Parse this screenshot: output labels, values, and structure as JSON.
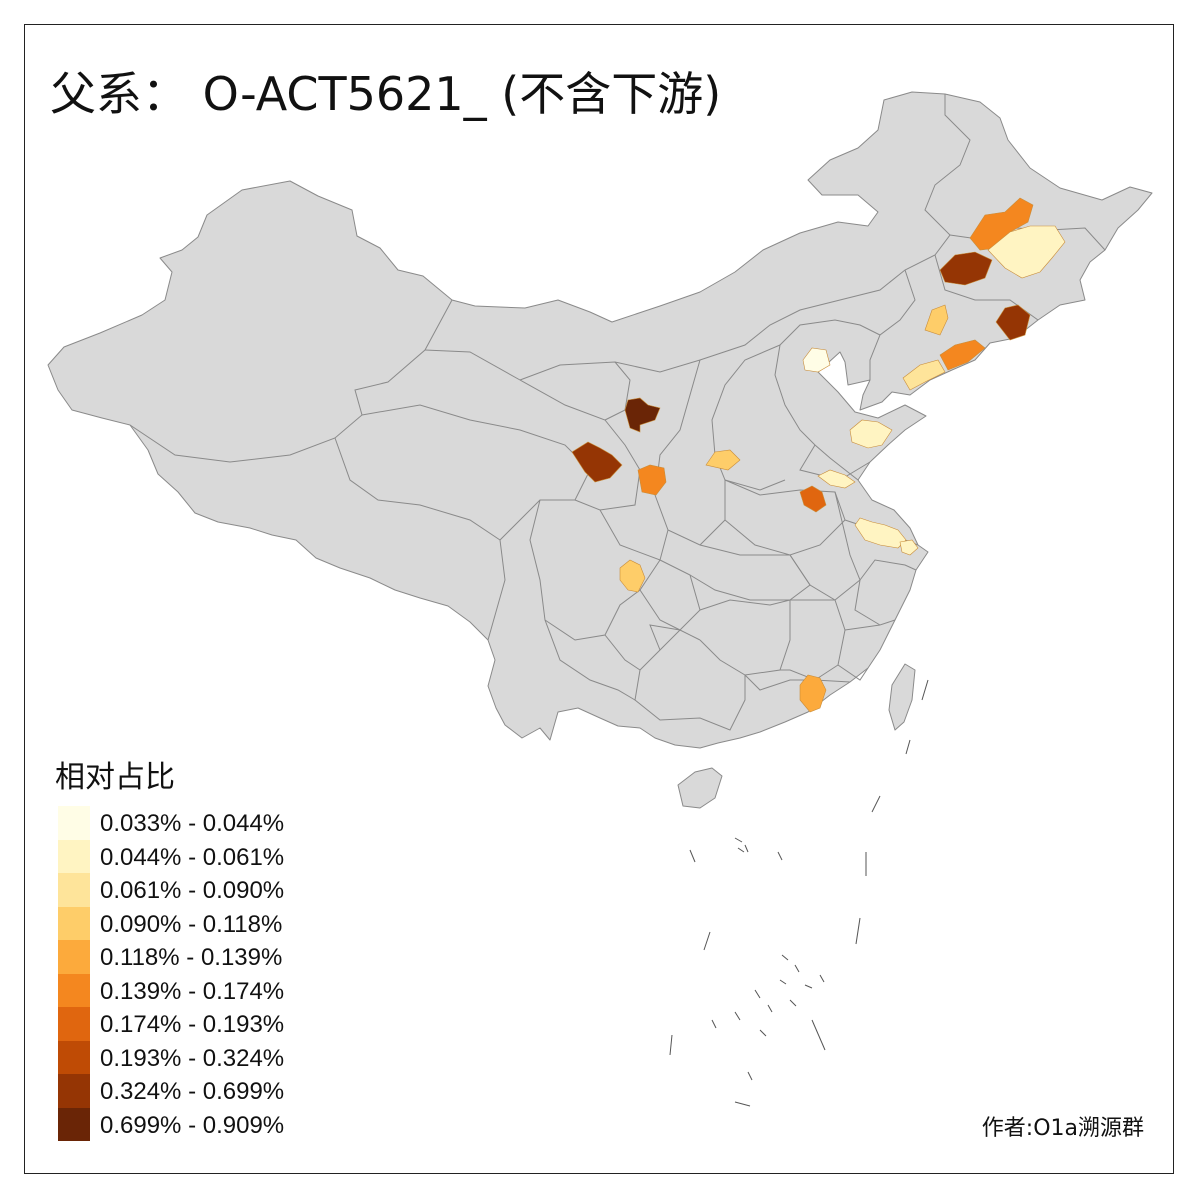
{
  "title": "父系： O-ACT5621_ (不含下游)",
  "legend": {
    "title": "相对占比",
    "items": [
      {
        "label": "0.033% - 0.044%",
        "color": "#fffde6"
      },
      {
        "label": "0.044% - 0.061%",
        "color": "#fff4c2"
      },
      {
        "label": "0.061% - 0.090%",
        "color": "#fee49a"
      },
      {
        "label": "0.090% - 0.118%",
        "color": "#fecd69"
      },
      {
        "label": "0.118% - 0.139%",
        "color": "#fcaa3c"
      },
      {
        "label": "0.139% - 0.174%",
        "color": "#f4871f"
      },
      {
        "label": "0.174% - 0.193%",
        "color": "#e0660f"
      },
      {
        "label": "0.193% - 0.324%",
        "color": "#bf4b05"
      },
      {
        "label": "0.324% - 0.699%",
        "color": "#953504"
      },
      {
        "label": "0.699% - 0.909%",
        "color": "#6a2506"
      }
    ]
  },
  "credit": "作者:O1a溯源群",
  "base_color": "#d9d9d9",
  "regions": [
    {
      "name": "齐齐哈尔",
      "bin": 5
    },
    {
      "name": "哈尔滨",
      "bin": 1
    },
    {
      "name": "长春",
      "bin": 8
    },
    {
      "name": "延边",
      "bin": 8
    },
    {
      "name": "沈阳",
      "bin": 5
    },
    {
      "name": "大连",
      "bin": 2
    },
    {
      "name": "锦州",
      "bin": 3
    },
    {
      "name": "北京",
      "bin": 0
    },
    {
      "name": "呼和浩特",
      "bin": 9
    },
    {
      "name": "兰州",
      "bin": 8
    },
    {
      "name": "天水",
      "bin": 5
    },
    {
      "name": "邯郸",
      "bin": 3
    },
    {
      "name": "潍坊",
      "bin": 1
    },
    {
      "name": "徐州",
      "bin": 1
    },
    {
      "name": "阜阳",
      "bin": 6
    },
    {
      "name": "南京",
      "bin": 1
    },
    {
      "name": "上海",
      "bin": 1
    },
    {
      "name": "成都",
      "bin": 3
    },
    {
      "name": "深圳",
      "bin": 4
    }
  ]
}
